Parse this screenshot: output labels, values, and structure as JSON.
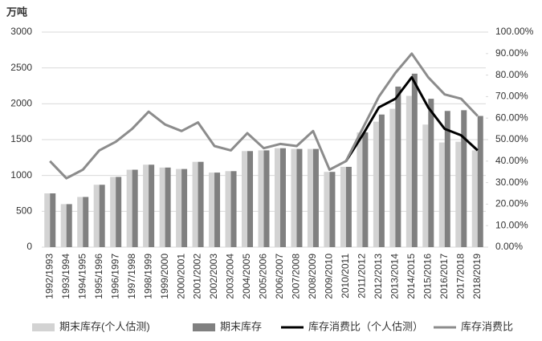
{
  "chart_data": {
    "type": "bar_line",
    "y_unit_label": "万吨",
    "categories": [
      "1992/1993",
      "1993/1994",
      "1994/1995",
      "1995/1996",
      "1996/1997",
      "1997/1998",
      "1998/1999",
      "1999/2000",
      "2000/2001",
      "2001/2002",
      "2002/2003",
      "2003/2004",
      "2004/2005",
      "2005/2006",
      "2006/2007",
      "2007/2008",
      "2008/2009",
      "2009/2010",
      "2010/2011",
      "2011/2012",
      "2012/2013",
      "2013/2014",
      "2014/2015",
      "2015/2016",
      "2016/2017",
      "2017/2018",
      "2018/2019"
    ],
    "ylim": [
      0,
      3000
    ],
    "yticks": [
      0,
      500,
      1000,
      1500,
      2000,
      2500,
      3000
    ],
    "y2lim": [
      0,
      100
    ],
    "y2ticks": [
      {
        "value": 0,
        "label": "0.00%"
      },
      {
        "value": 10,
        "label": "10.00%"
      },
      {
        "value": 20,
        "label": "20.00%"
      },
      {
        "value": 30,
        "label": "30.00%"
      },
      {
        "value": 40,
        "label": "40.00%"
      },
      {
        "value": 50,
        "label": "50.00%"
      },
      {
        "value": 60,
        "label": "60.00%"
      },
      {
        "value": 70,
        "label": "70.00%"
      },
      {
        "value": 80,
        "label": "80.00%"
      },
      {
        "value": 90,
        "label": "90.00%"
      },
      {
        "value": 100,
        "label": "100.00%"
      }
    ],
    "series": [
      {
        "name": "期末库存(个人估测)",
        "kind": "bar",
        "color": "#d3d3d3",
        "values": [
          750,
          600,
          700,
          870,
          980,
          1080,
          1150,
          1110,
          1090,
          1190,
          1040,
          1060,
          1340,
          1350,
          1380,
          1370,
          1370,
          1050,
          1120,
          1600,
          1750,
          1930,
          2110,
          1710,
          1460,
          1470,
          1350
        ]
      },
      {
        "name": "期末库存",
        "kind": "bar",
        "color": "#808080",
        "values": [
          750,
          600,
          700,
          870,
          980,
          1080,
          1150,
          1110,
          1090,
          1190,
          1040,
          1060,
          1340,
          1350,
          1380,
          1370,
          1370,
          1050,
          1120,
          1600,
          1850,
          2240,
          2420,
          2070,
          1900,
          1910,
          1830
        ]
      },
      {
        "name": "库存消费比（个人估测）",
        "kind": "line",
        "axis": "y2",
        "color": "#000000",
        "values": [
          null,
          null,
          null,
          null,
          null,
          null,
          null,
          null,
          null,
          null,
          null,
          null,
          null,
          null,
          null,
          null,
          null,
          null,
          40,
          52,
          65,
          69,
          79,
          65,
          55,
          52,
          45
        ]
      },
      {
        "name": "库存消费比",
        "kind": "line",
        "axis": "y2",
        "color": "#8c8c8c",
        "values": [
          40,
          32,
          36,
          45,
          49,
          55,
          63,
          57,
          54,
          58,
          47,
          45,
          53,
          46,
          48,
          47,
          54,
          36,
          40,
          55,
          70,
          81,
          90,
          79,
          71,
          69,
          61
        ]
      }
    ]
  }
}
